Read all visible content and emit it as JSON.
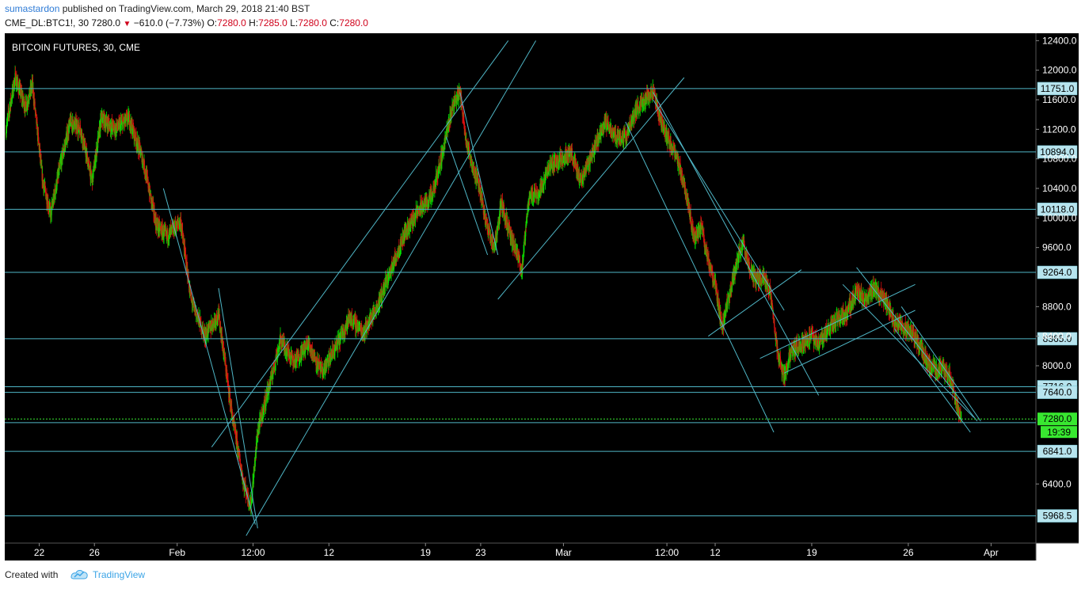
{
  "header": {
    "author": "sumastardon",
    "published_text": "published on TradingView.com, March 29, 2018 21:40 BST",
    "symbol": "CME_DL:BTC1!, 30",
    "last": "7280.0",
    "change": "−610.0 (−7.73%)",
    "o_label": "O:",
    "o_value": "7280.0",
    "h_label": "H:",
    "h_value": "7285.0",
    "l_label": "L:",
    "l_value": "7280.0",
    "c_label": "C:",
    "c_value": "7280.0"
  },
  "footer": {
    "created_with": "Created with",
    "brand": "TradingView"
  },
  "colors": {
    "background": "#000000",
    "up": "#00e400",
    "down": "#e01010",
    "lines": "#4fb6c6",
    "last_price_bg": "#38e830"
  },
  "chart_data": {
    "type": "candlestick",
    "title": "BITCOIN FUTURES, 30, CME",
    "ylim": [
      5600,
      12500
    ],
    "y_ticks": [
      "12400.0",
      "12000.0",
      "11600.0",
      "11200.0",
      "10800.0",
      "10400.0",
      "10000.0",
      "9600.0",
      "8800.0",
      "8400.0",
      "8000.0",
      "6400.0"
    ],
    "x_ticks": [
      {
        "label": "22",
        "date": "2018-01-22"
      },
      {
        "label": "26",
        "date": "2018-01-26"
      },
      {
        "label": "Feb",
        "date": "2018-02-01"
      },
      {
        "label": "12:00",
        "date": "2018-02-06 12:00"
      },
      {
        "label": "12",
        "date": "2018-02-12"
      },
      {
        "label": "19",
        "date": "2018-02-19"
      },
      {
        "label": "23",
        "date": "2018-02-23"
      },
      {
        "label": "Mar",
        "date": "2018-03-01"
      },
      {
        "label": "12:00",
        "date": "2018-03-08 12:00"
      },
      {
        "label": "12",
        "date": "2018-03-12"
      },
      {
        "label": "19",
        "date": "2018-03-19"
      },
      {
        "label": "26",
        "date": "2018-03-26"
      },
      {
        "label": "Apr",
        "date": "2018-04-01"
      }
    ],
    "x_range": [
      "2018-01-19 12:00",
      "2018-04-04 06:00"
    ],
    "price_path": [
      {
        "t": "2018-01-19 14:00",
        "p": 11200
      },
      {
        "t": "2018-01-20 06:00",
        "p": 11900
      },
      {
        "t": "2018-01-21 00:00",
        "p": 11500
      },
      {
        "t": "2018-01-21 12:00",
        "p": 11800
      },
      {
        "t": "2018-01-22 06:00",
        "p": 10500
      },
      {
        "t": "2018-01-22 20:00",
        "p": 10050
      },
      {
        "t": "2018-01-23 12:00",
        "p": 10700
      },
      {
        "t": "2018-01-24 06:00",
        "p": 11300
      },
      {
        "t": "2018-01-25 00:00",
        "p": 11200
      },
      {
        "t": "2018-01-25 20:00",
        "p": 10500
      },
      {
        "t": "2018-01-26 12:00",
        "p": 11350
      },
      {
        "t": "2018-01-27 12:00",
        "p": 11200
      },
      {
        "t": "2018-01-28 12:00",
        "p": 11350
      },
      {
        "t": "2018-01-29 12:00",
        "p": 10800
      },
      {
        "t": "2018-01-30 12:00",
        "p": 9900
      },
      {
        "t": "2018-01-31 06:00",
        "p": 9750
      },
      {
        "t": "2018-02-01 06:00",
        "p": 9950
      },
      {
        "t": "2018-02-02 00:00",
        "p": 8900
      },
      {
        "t": "2018-02-03 00:00",
        "p": 8400
      },
      {
        "t": "2018-02-04 00:00",
        "p": 8700
      },
      {
        "t": "2018-02-05 00:00",
        "p": 7300
      },
      {
        "t": "2018-02-05 20:00",
        "p": 6400
      },
      {
        "t": "2018-02-06 08:00",
        "p": 6100
      },
      {
        "t": "2018-02-06 20:00",
        "p": 7100
      },
      {
        "t": "2018-02-07 12:00",
        "p": 7600
      },
      {
        "t": "2018-02-08 12:00",
        "p": 8350
      },
      {
        "t": "2018-02-09 12:00",
        "p": 8050
      },
      {
        "t": "2018-02-10 12:00",
        "p": 8300
      },
      {
        "t": "2018-02-11 12:00",
        "p": 7900
      },
      {
        "t": "2018-02-12 12:00",
        "p": 8250
      },
      {
        "t": "2018-02-13 12:00",
        "p": 8650
      },
      {
        "t": "2018-02-14 12:00",
        "p": 8450
      },
      {
        "t": "2018-02-15 12:00",
        "p": 8800
      },
      {
        "t": "2018-02-16 12:00",
        "p": 9300
      },
      {
        "t": "2018-02-17 12:00",
        "p": 9800
      },
      {
        "t": "2018-02-18 12:00",
        "p": 10100
      },
      {
        "t": "2018-02-19 12:00",
        "p": 10300
      },
      {
        "t": "2018-02-20 06:00",
        "p": 10900
      },
      {
        "t": "2018-02-21 00:00",
        "p": 11550
      },
      {
        "t": "2018-02-21 12:00",
        "p": 11700
      },
      {
        "t": "2018-02-22 00:00",
        "p": 11000
      },
      {
        "t": "2018-02-22 12:00",
        "p": 10650
      },
      {
        "t": "2018-02-23 00:00",
        "p": 10350
      },
      {
        "t": "2018-02-23 12:00",
        "p": 9850
      },
      {
        "t": "2018-02-24 00:00",
        "p": 9600
      },
      {
        "t": "2018-02-24 12:00",
        "p": 10200
      },
      {
        "t": "2018-02-25 06:00",
        "p": 9700
      },
      {
        "t": "2018-02-26 00:00",
        "p": 9300
      },
      {
        "t": "2018-02-26 12:00",
        "p": 10300
      },
      {
        "t": "2018-02-27 06:00",
        "p": 10350
      },
      {
        "t": "2018-02-28 00:00",
        "p": 10700
      },
      {
        "t": "2018-02-28 20:00",
        "p": 10800
      },
      {
        "t": "2018-03-01 12:00",
        "p": 10900
      },
      {
        "t": "2018-03-02 06:00",
        "p": 10500
      },
      {
        "t": "2018-03-03 06:00",
        "p": 10950
      },
      {
        "t": "2018-03-04 00:00",
        "p": 11300
      },
      {
        "t": "2018-03-04 20:00",
        "p": 11100
      },
      {
        "t": "2018-03-05 12:00",
        "p": 11100
      },
      {
        "t": "2018-03-06 06:00",
        "p": 11450
      },
      {
        "t": "2018-03-06 20:00",
        "p": 11600
      },
      {
        "t": "2018-03-07 12:00",
        "p": 11700
      },
      {
        "t": "2018-03-08 00:00",
        "p": 11350
      },
      {
        "t": "2018-03-08 12:00",
        "p": 11100
      },
      {
        "t": "2018-03-09 00:00",
        "p": 10900
      },
      {
        "t": "2018-03-09 12:00",
        "p": 10650
      },
      {
        "t": "2018-03-10 00:00",
        "p": 10250
      },
      {
        "t": "2018-03-10 12:00",
        "p": 9700
      },
      {
        "t": "2018-03-11 00:00",
        "p": 9900
      },
      {
        "t": "2018-03-11 12:00",
        "p": 9400
      },
      {
        "t": "2018-03-12 00:00",
        "p": 9100
      },
      {
        "t": "2018-03-12 12:00",
        "p": 8500
      },
      {
        "t": "2018-03-13 06:00",
        "p": 9150
      },
      {
        "t": "2018-03-14 00:00",
        "p": 9700
      },
      {
        "t": "2018-03-14 12:00",
        "p": 9300
      },
      {
        "t": "2018-03-15 00:00",
        "p": 9150
      },
      {
        "t": "2018-03-15 12:00",
        "p": 9200
      },
      {
        "t": "2018-03-16 00:00",
        "p": 9000
      },
      {
        "t": "2018-03-16 12:00",
        "p": 8200
      },
      {
        "t": "2018-03-17 00:00",
        "p": 7850
      },
      {
        "t": "2018-03-17 12:00",
        "p": 8200
      },
      {
        "t": "2018-03-18 06:00",
        "p": 8300
      },
      {
        "t": "2018-03-19 00:00",
        "p": 8400
      },
      {
        "t": "2018-03-19 12:00",
        "p": 8300
      },
      {
        "t": "2018-03-20 06:00",
        "p": 8500
      },
      {
        "t": "2018-03-21 00:00",
        "p": 8650
      },
      {
        "t": "2018-03-21 12:00",
        "p": 8700
      },
      {
        "t": "2018-03-22 06:00",
        "p": 9000
      },
      {
        "t": "2018-03-22 20:00",
        "p": 8900
      },
      {
        "t": "2018-03-23 12:00",
        "p": 9050
      },
      {
        "t": "2018-03-24 06:00",
        "p": 8900
      },
      {
        "t": "2018-03-25 00:00",
        "p": 8600
      },
      {
        "t": "2018-03-25 12:00",
        "p": 8550
      },
      {
        "t": "2018-03-26 06:00",
        "p": 8450
      },
      {
        "t": "2018-03-27 00:00",
        "p": 8200
      },
      {
        "t": "2018-03-27 12:00",
        "p": 8000
      },
      {
        "t": "2018-03-28 00:00",
        "p": 7950
      },
      {
        "t": "2018-03-28 12:00",
        "p": 7950
      },
      {
        "t": "2018-03-29 00:00",
        "p": 7850
      },
      {
        "t": "2018-03-29 12:00",
        "p": 7500
      },
      {
        "t": "2018-03-29 20:00",
        "p": 7300
      }
    ],
    "horizontal_levels": [
      11751.0,
      10894.0,
      10118.0,
      9264.0,
      8365.0,
      7716.0,
      7640.0,
      7230.0,
      6841.0,
      5968.5
    ],
    "level_labels": [
      "11751.0",
      "10894.0",
      "10118.0",
      "9264.0",
      "8365.0",
      "7716.0",
      "7640.0",
      "",
      "6841.0",
      "5968.5"
    ],
    "last_price": 7280.0,
    "last_price_label": "7280.0",
    "countdown_label": "19:39",
    "trend_lines": [
      {
        "from": {
          "t": "2018-01-31 00:00",
          "p": 10400
        },
        "to": {
          "t": "2018-02-06 16:00",
          "p": 5850
        }
      },
      {
        "from": {
          "t": "2018-02-04 00:00",
          "p": 9050
        },
        "to": {
          "t": "2018-02-06 20:00",
          "p": 5800
        }
      },
      {
        "from": {
          "t": "2018-02-03 12:00",
          "p": 6900
        },
        "to": {
          "t": "2018-02-25 00:00",
          "p": 12400
        }
      },
      {
        "from": {
          "t": "2018-02-06 00:00",
          "p": 5700
        },
        "to": {
          "t": "2018-02-27 00:00",
          "p": 12400
        }
      },
      {
        "from": {
          "t": "2018-02-21 12:00",
          "p": 11700
        },
        "to": {
          "t": "2018-02-24 06:00",
          "p": 9500
        }
      },
      {
        "from": {
          "t": "2018-02-20 12:00",
          "p": 11100
        },
        "to": {
          "t": "2018-02-23 12:00",
          "p": 9500
        }
      },
      {
        "from": {
          "t": "2018-02-24 06:00",
          "p": 8900
        },
        "to": {
          "t": "2018-03-09 18:00",
          "p": 11900
        }
      },
      {
        "from": {
          "t": "2018-03-05 12:00",
          "p": 11300
        },
        "to": {
          "t": "2018-03-16 06:00",
          "p": 7100
        }
      },
      {
        "from": {
          "t": "2018-03-07 12:00",
          "p": 11700
        },
        "to": {
          "t": "2018-03-19 12:00",
          "p": 7600
        }
      },
      {
        "from": {
          "t": "2018-03-07 12:00",
          "p": 11600
        },
        "to": {
          "t": "2018-03-17 00:00",
          "p": 8750
        }
      },
      {
        "from": {
          "t": "2018-03-11 12:00",
          "p": 8400
        },
        "to": {
          "t": "2018-03-18 06:00",
          "p": 9300
        }
      },
      {
        "from": {
          "t": "2018-03-15 06:00",
          "p": 8100
        },
        "to": {
          "t": "2018-03-26 12:00",
          "p": 9100
        }
      },
      {
        "from": {
          "t": "2018-03-17 00:00",
          "p": 7900
        },
        "to": {
          "t": "2018-03-26 12:00",
          "p": 8750
        }
      },
      {
        "from": {
          "t": "2018-03-21 06:00",
          "p": 9100
        },
        "to": {
          "t": "2018-03-30 18:00",
          "p": 7300
        }
      },
      {
        "from": {
          "t": "2018-03-22 06:00",
          "p": 9330
        },
        "to": {
          "t": "2018-03-31 00:00",
          "p": 7250
        }
      },
      {
        "from": {
          "t": "2018-03-25 12:00",
          "p": 8800
        },
        "to": {
          "t": "2018-03-31 06:00",
          "p": 7250
        }
      },
      {
        "from": {
          "t": "2018-03-25 00:00",
          "p": 8500
        },
        "to": {
          "t": "2018-03-30 12:00",
          "p": 7100
        }
      }
    ]
  }
}
